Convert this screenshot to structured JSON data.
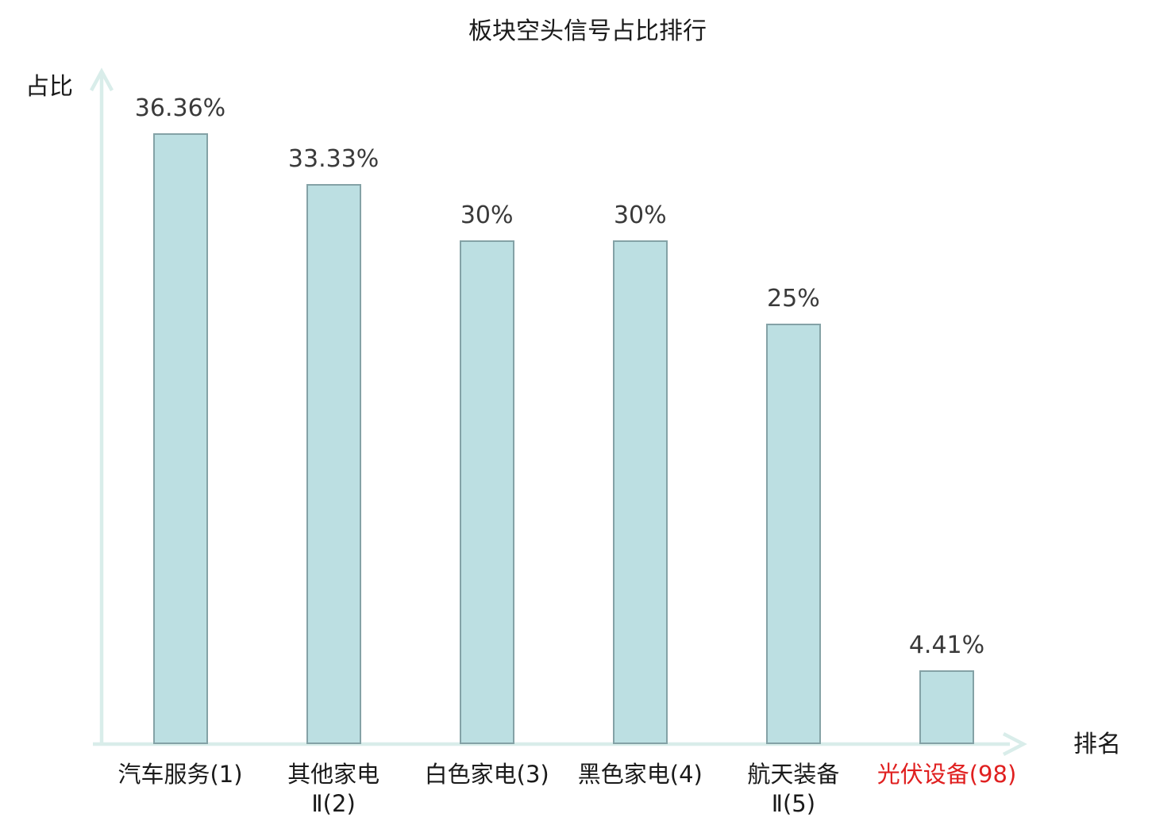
{
  "title": "板块空头信号占比排行",
  "y_axis_label": "占比",
  "x_axis_label": "排名",
  "colors": {
    "bar_fill": "#bcdfe2",
    "bar_border": "#84a2a6",
    "axis": "#d9edea",
    "value_label": "#3a3a3a",
    "tick_label": "#1a1a1a",
    "highlight": "#e02020"
  },
  "chart_data": {
    "type": "bar",
    "title": "板块空头信号占比排行",
    "xlabel": "排名",
    "ylabel": "占比",
    "ylim": [
      0,
      40
    ],
    "grid": false,
    "legend": "none",
    "categories": [
      "汽车服务(1)",
      "其他家电\nⅡ(2)",
      "白色家电(3)",
      "黑色家电(4)",
      "航天装备\nⅡ(5)",
      "光伏设备(98)"
    ],
    "values": [
      36.36,
      33.33,
      30,
      30,
      25,
      4.41
    ],
    "value_labels": [
      "36.36%",
      "33.33%",
      "30%",
      "30%",
      "25%",
      "4.41%"
    ],
    "highlighted_category_index": 5
  }
}
